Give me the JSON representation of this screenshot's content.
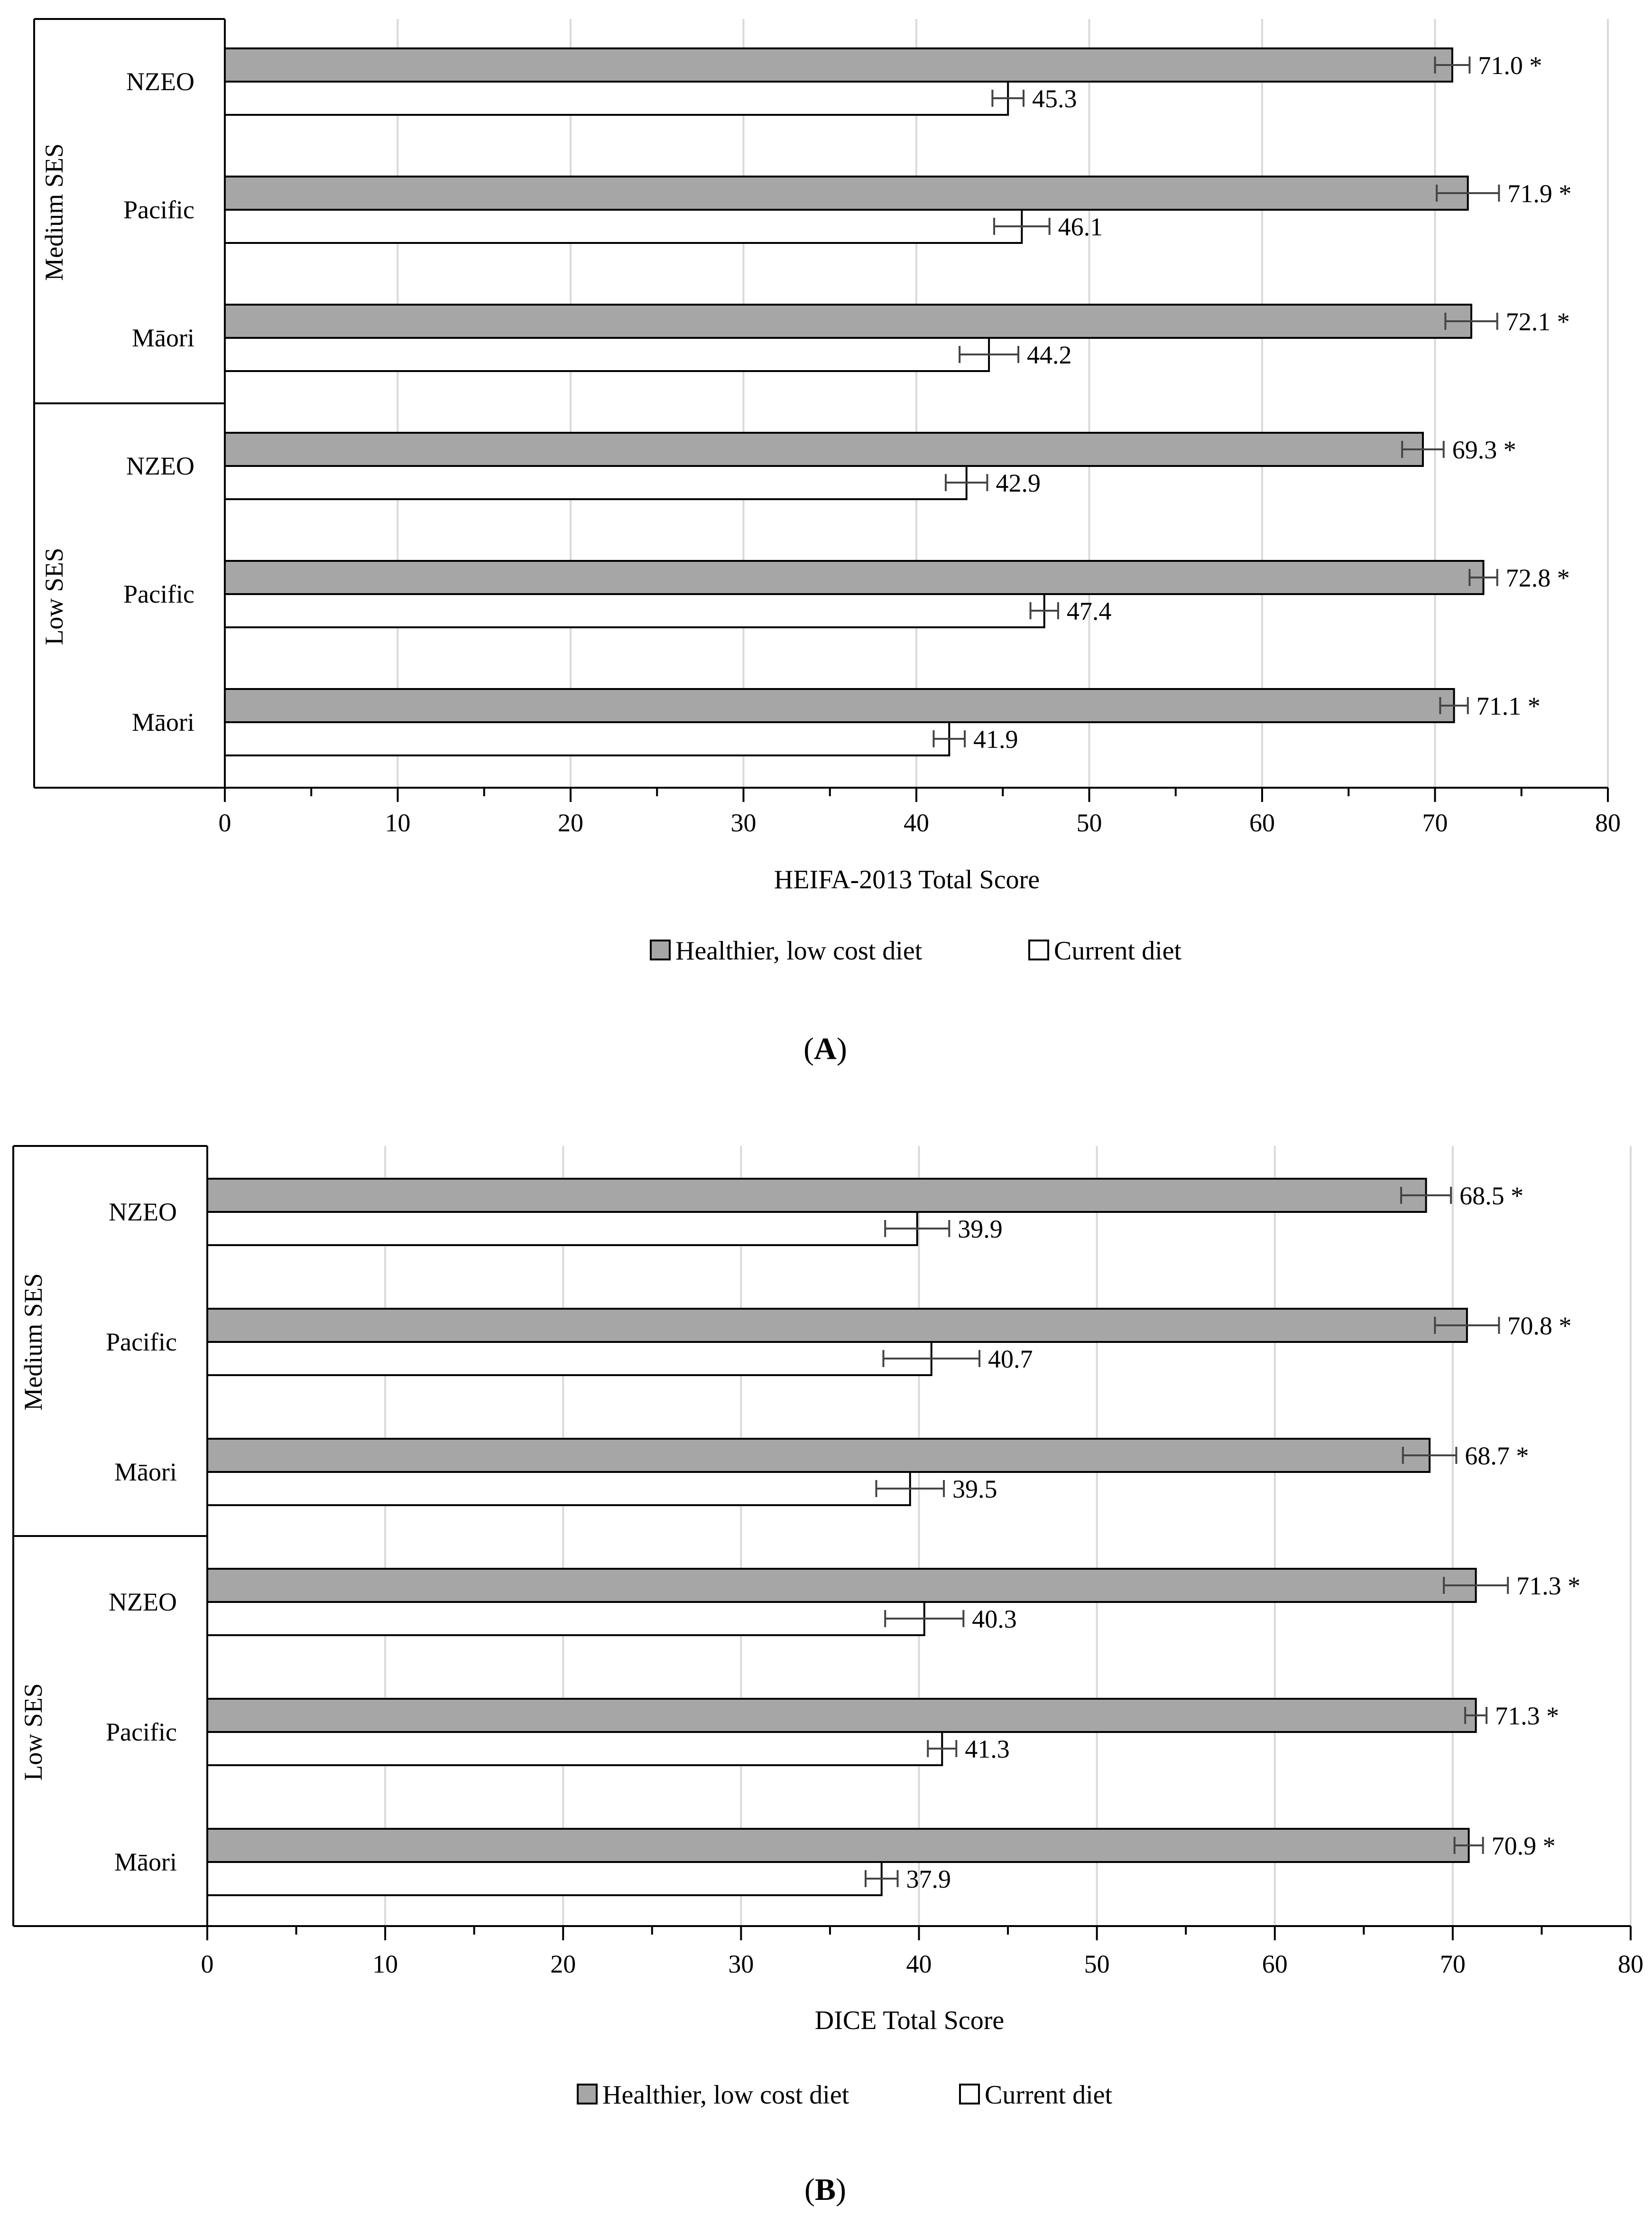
{
  "chart_data": [
    {
      "type": "bar",
      "orientation": "horizontal",
      "panel_label": "A",
      "xlabel": "HEIFA-2013 Total Score",
      "xlim": [
        0,
        80
      ],
      "xticks": [
        "0",
        "10",
        "20",
        "30",
        "40",
        "50",
        "60",
        "70",
        "80"
      ],
      "groups": [
        {
          "name": "Medium SES",
          "categories": [
            "NZEO",
            "Pacific",
            "Māori"
          ]
        },
        {
          "name": "Low SES",
          "categories": [
            "NZEO",
            "Pacific",
            "Māori"
          ]
        }
      ],
      "series": [
        {
          "name": "Healthier, low cost diet",
          "color": "#a6a6a6",
          "values": [
            71.0,
            71.9,
            72.1,
            69.3,
            72.8,
            71.1
          ],
          "errors": [
            1.0,
            1.8,
            1.5,
            1.2,
            0.8,
            0.8
          ],
          "labels": [
            "71.0 *",
            "71.9 *",
            "72.1 *",
            "69.3 *",
            "72.8 *",
            "71.1 *"
          ]
        },
        {
          "name": "Current diet",
          "color": "#ffffff",
          "values": [
            45.3,
            46.1,
            44.2,
            42.9,
            47.4,
            41.9
          ],
          "errors": [
            0.9,
            1.6,
            1.7,
            1.2,
            0.8,
            0.9
          ],
          "labels": [
            "45.3",
            "46.1",
            "44.2",
            "42.9",
            "47.4",
            "41.9"
          ]
        }
      ]
    },
    {
      "type": "bar",
      "orientation": "horizontal",
      "panel_label": "B",
      "xlabel": "DICE Total Score",
      "xlim": [
        0,
        80
      ],
      "xticks": [
        "0",
        "10",
        "20",
        "30",
        "40",
        "50",
        "60",
        "70",
        "80"
      ],
      "groups": [
        {
          "name": "Medium SES",
          "categories": [
            "NZEO",
            "Pacific",
            "Māori"
          ]
        },
        {
          "name": "Low SES",
          "categories": [
            "NZEO",
            "Pacific",
            "Māori"
          ]
        }
      ],
      "series": [
        {
          "name": "Healthier, low cost diet",
          "color": "#a6a6a6",
          "values": [
            68.5,
            70.8,
            68.7,
            71.3,
            71.3,
            70.9
          ],
          "errors": [
            1.4,
            1.8,
            1.5,
            1.8,
            0.6,
            0.8
          ],
          "labels": [
            "68.5 *",
            "70.8 *",
            "68.7 *",
            "71.3 *",
            "71.3 *",
            "70.9 *"
          ]
        },
        {
          "name": "Current diet",
          "color": "#ffffff",
          "values": [
            39.9,
            40.7,
            39.5,
            40.3,
            41.3,
            37.9
          ],
          "errors": [
            1.8,
            2.7,
            1.9,
            2.2,
            0.8,
            0.9
          ],
          "labels": [
            "39.9",
            "40.7",
            "39.5",
            "40.3",
            "41.3",
            "37.9"
          ]
        }
      ]
    }
  ]
}
